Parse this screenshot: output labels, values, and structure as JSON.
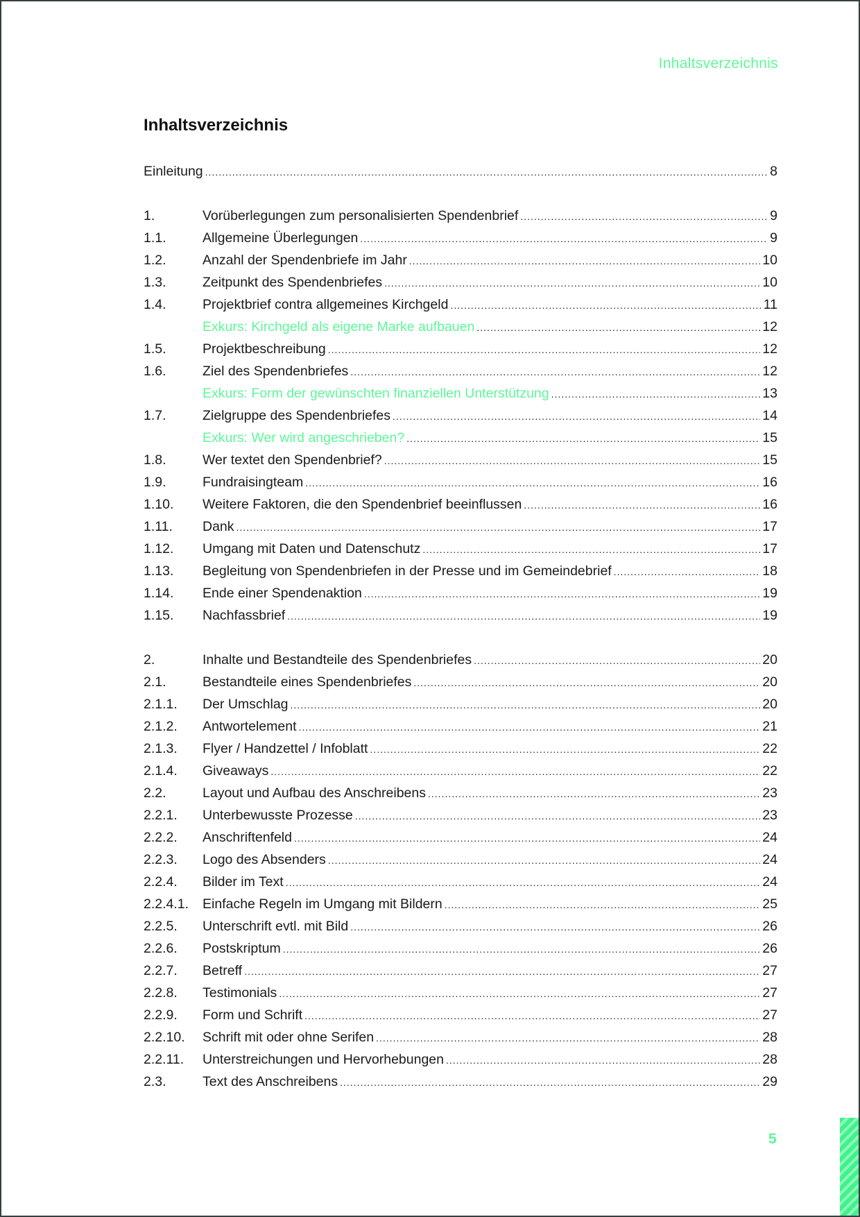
{
  "running_head": "Inhaltsverzeichnis",
  "title": "Inhaltsverzeichnis",
  "page_number": "5",
  "accent_color": "#5ef79a",
  "toc": [
    {
      "num": "",
      "text": "Einleitung",
      "page": "8",
      "full": true
    },
    {
      "num": "1.",
      "text": "Vorüberlegungen zum personalisierten Spendenbrief",
      "page": "9",
      "gap": true
    },
    {
      "num": "1.1.",
      "text": "Allgemeine Überlegungen",
      "page": "9"
    },
    {
      "num": "1.2.",
      "text": "Anzahl der Spendenbriefe im Jahr",
      "page": "10"
    },
    {
      "num": "1.3.",
      "text": "Zeitpunkt des Spendenbriefes",
      "page": "10"
    },
    {
      "num": "1.4.",
      "text": "Projektbrief contra allgemeines Kirchgeld",
      "page": "11"
    },
    {
      "num": "",
      "text": "Exkurs: Kirchgeld als eigene Marke aufbauen",
      "page": "12",
      "exkurs": true
    },
    {
      "num": "1.5.",
      "text": "Projektbeschreibung",
      "page": "12"
    },
    {
      "num": "1.6.",
      "text": "Ziel des Spendenbriefes",
      "page": "12"
    },
    {
      "num": "",
      "text": "Exkurs: Form der gewünschten finanziellen Unterstützung",
      "page": "13",
      "exkurs": true
    },
    {
      "num": "1.7.",
      "text": "Zielgruppe des Spendenbriefes",
      "page": "14"
    },
    {
      "num": "",
      "text": "Exkurs: Wer wird angeschrieben?",
      "page": "15",
      "exkurs": true
    },
    {
      "num": "1.8.",
      "text": "Wer textet den Spendenbrief?",
      "page": "15"
    },
    {
      "num": "1.9.",
      "text": "Fundraisingteam",
      "page": "16"
    },
    {
      "num": "1.10.",
      "text": "Weitere Faktoren, die den Spendenbrief beeinflussen",
      "page": "16"
    },
    {
      "num": "1.11.",
      "text": "Dank",
      "page": "17"
    },
    {
      "num": "1.12.",
      "text": "Umgang mit Daten und Datenschutz",
      "page": "17"
    },
    {
      "num": "1.13.",
      "text": "Begleitung von Spendenbriefen in der Presse und im Gemeindebrief",
      "page": "18"
    },
    {
      "num": "1.14.",
      "text": "Ende einer Spendenaktion",
      "page": "19"
    },
    {
      "num": "1.15.",
      "text": "Nachfassbrief",
      "page": "19"
    },
    {
      "num": "2.",
      "text": "Inhalte und Bestandteile des Spendenbriefes",
      "page": "20",
      "gap": true
    },
    {
      "num": "2.1.",
      "text": "Bestandteile eines Spendenbriefes",
      "page": "20"
    },
    {
      "num": "2.1.1.",
      "text": "Der Umschlag",
      "page": "20"
    },
    {
      "num": "2.1.2.",
      "text": "Antwortelement",
      "page": "21"
    },
    {
      "num": "2.1.3.",
      "text": "Flyer / Handzettel / Infoblatt",
      "page": "22"
    },
    {
      "num": "2.1.4.",
      "text": "Giveaways",
      "page": "22"
    },
    {
      "num": "2.2.",
      "text": "Layout und Aufbau des Anschreibens",
      "page": "23"
    },
    {
      "num": "2.2.1.",
      "text": "Unterbewusste Prozesse",
      "page": "23"
    },
    {
      "num": "2.2.2.",
      "text": "Anschriftenfeld",
      "page": "24"
    },
    {
      "num": "2.2.3.",
      "text": "Logo des Absenders",
      "page": "24"
    },
    {
      "num": "2.2.4.",
      "text": "Bilder im Text",
      "page": "24"
    },
    {
      "num": "2.2.4.1.",
      "text": "Einfache Regeln im Umgang mit Bildern",
      "page": "25"
    },
    {
      "num": "2.2.5.",
      "text": "Unterschrift evtl. mit Bild",
      "page": "26"
    },
    {
      "num": "2.2.6.",
      "text": "Postskriptum",
      "page": "26"
    },
    {
      "num": "2.2.7.",
      "text": "Betreff",
      "page": "27"
    },
    {
      "num": "2.2.8.",
      "text": "Testimonials",
      "page": "27"
    },
    {
      "num": "2.2.9.",
      "text": "Form und Schrift",
      "page": "27"
    },
    {
      "num": "2.2.10.",
      "text": "Schrift mit oder ohne Serifen",
      "page": "28"
    },
    {
      "num": "2.2.11.",
      "text": "Unterstreichungen und Hervorhebungen",
      "page": "28"
    },
    {
      "num": "2.3.",
      "text": "Text des Anschreibens",
      "page": "29"
    }
  ]
}
